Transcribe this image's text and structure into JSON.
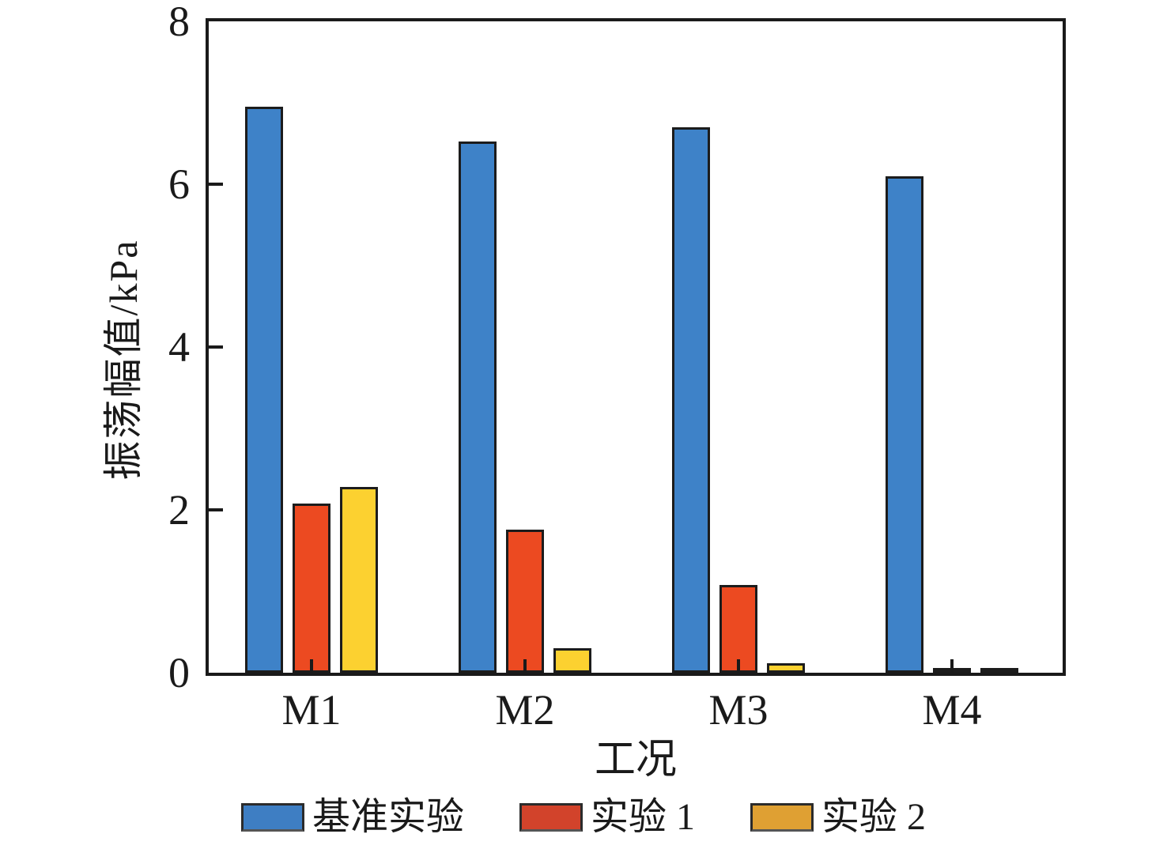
{
  "chart_data": {
    "type": "bar",
    "categories": [
      "M1",
      "M2",
      "M3",
      "M4"
    ],
    "series": [
      {
        "name": "基准实验",
        "values": [
          6.95,
          6.52,
          6.7,
          6.1
        ],
        "color": "#3E82C8",
        "legend_color": "#3E7EC3"
      },
      {
        "name": "实验 1",
        "values": [
          2.08,
          1.76,
          1.08,
          0.05
        ],
        "color": "#EC4A21",
        "legend_color": "#D2432B"
      },
      {
        "name": "实验 2",
        "values": [
          2.28,
          0.3,
          0.12,
          0.02
        ],
        "color": "#FCD130",
        "legend_color": "#DFA033"
      }
    ],
    "title": "",
    "xlabel": "工况",
    "ylabel": "振荡幅值/kPa",
    "ylim": [
      0,
      8
    ],
    "yticks": [
      0,
      2,
      4,
      6,
      8
    ],
    "grid": false,
    "legend_position": "bottom",
    "bar_outline": "#1C1C1C",
    "axis_color": "#1A1A1A"
  }
}
